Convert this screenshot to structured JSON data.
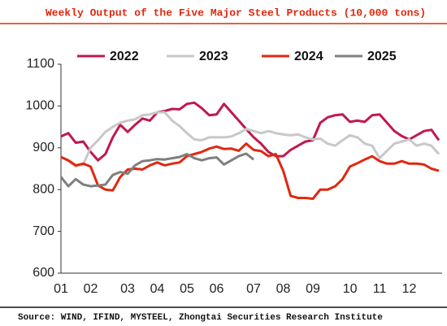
{
  "chart_data": {
    "type": "line",
    "title": "Weekly Output of the Five Major Steel Products (10,000 tons)",
    "source": "Source: WIND, IFIND, MYSTEEL, Zhongtai Securities Research Institute",
    "categories": [
      "01",
      null,
      null,
      null,
      "02",
      null,
      null,
      null,
      null,
      "03",
      null,
      null,
      null,
      "04",
      null,
      null,
      null,
      "05",
      null,
      null,
      null,
      "06",
      null,
      null,
      null,
      null,
      "07",
      null,
      null,
      null,
      "08",
      null,
      null,
      null,
      "09",
      null,
      null,
      null,
      null,
      "10",
      null,
      null,
      null,
      "11",
      null,
      null,
      null,
      "12",
      null,
      null,
      null,
      null
    ],
    "series": [
      {
        "name": "2022",
        "color": "#c0194f",
        "values": [
          927,
          935,
          912,
          915,
          890,
          870,
          885,
          925,
          955,
          938,
          955,
          970,
          965,
          985,
          988,
          993,
          992,
          1005,
          1008,
          995,
          978,
          980,
          1005,
          985,
          965,
          945,
          925,
          910,
          890,
          880,
          880,
          895,
          905,
          915,
          918,
          960,
          973,
          978,
          980,
          962,
          965,
          962,
          978,
          980,
          960,
          940,
          928,
          920,
          930,
          940,
          943,
          918
        ]
      },
      {
        "name": "2023",
        "color": "#c8c8c8",
        "values": [
          878,
          868,
          855,
          860,
          900,
          918,
          938,
          950,
          960,
          965,
          968,
          978,
          980,
          985,
          985,
          965,
          952,
          935,
          920,
          918,
          925,
          925,
          925,
          927,
          935,
          945,
          940,
          935,
          940,
          935,
          932,
          930,
          932,
          925,
          920,
          922,
          910,
          905,
          918,
          930,
          925,
          910,
          905,
          875,
          893,
          910,
          915,
          920,
          905,
          910,
          905,
          885
        ]
      },
      {
        "name": "2024",
        "color": "#e0280f",
        "values": [
          878,
          870,
          858,
          862,
          855,
          810,
          800,
          798,
          830,
          848,
          850,
          848,
          858,
          865,
          858,
          862,
          865,
          880,
          885,
          890,
          898,
          903,
          897,
          898,
          893,
          910,
          895,
          892,
          880,
          885,
          845,
          785,
          780,
          780,
          778,
          800,
          800,
          808,
          825,
          855,
          863,
          872,
          880,
          868,
          862,
          862,
          868,
          862,
          862,
          860,
          850,
          845
        ]
      },
      {
        "name": "2025",
        "color": "#7f7f7f",
        "values": [
          830,
          808,
          825,
          812,
          808,
          810,
          812,
          835,
          842,
          838,
          858,
          868,
          870,
          873,
          872,
          875,
          878,
          885,
          875,
          870,
          875,
          877,
          860,
          870,
          880,
          886,
          872,
          null,
          null,
          null,
          null,
          null,
          null,
          null,
          null,
          null,
          null,
          null,
          null,
          null,
          null,
          null,
          null,
          null,
          null,
          null,
          null,
          null,
          null,
          null,
          null,
          null
        ]
      }
    ],
    "ylim": [
      600,
      1100
    ],
    "yticks": [
      600,
      700,
      800,
      900,
      1000,
      1100
    ],
    "grid": false
  }
}
